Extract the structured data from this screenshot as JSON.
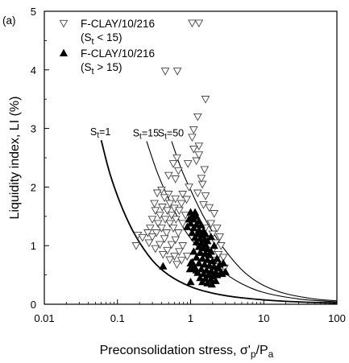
{
  "chart_data": {
    "type": "scatter",
    "panel_label": "(a)",
    "title": "",
    "xlabel": "Preconsolidation stress, σ'p/Pa",
    "xlabel_parts": {
      "main": "Preconsolidation stress, σ'",
      "sub1": "p",
      "mid": "/P",
      "sub2": "a"
    },
    "ylabel": "Liquidity index, LI (%)",
    "x_scale": "log",
    "xlim": [
      0.01,
      100
    ],
    "ylim": [
      0,
      5
    ],
    "x_ticks": [
      0.01,
      0.1,
      1,
      10,
      100
    ],
    "x_tick_labels": [
      "0.01",
      "0.1",
      "1",
      "10",
      "100"
    ],
    "y_ticks": [
      0,
      1,
      2,
      3,
      4,
      5
    ],
    "y_tick_labels": [
      "0",
      "1",
      "2",
      "3",
      "4",
      "5"
    ],
    "grid": false,
    "legend": {
      "placement": "top-left",
      "entries": [
        {
          "line1": "F-CLAY/10/216",
          "line2_prefix": "(S",
          "line2_sub": "t",
          "line2_suffix": " < 15)",
          "marker": "triangle-down-open"
        },
        {
          "line1": "F-CLAY/10/216",
          "line2_prefix": "(S",
          "line2_sub": "t",
          "line2_suffix": " > 15)",
          "marker": "triangle-up-filled"
        }
      ]
    },
    "series": [
      {
        "name": "F-CLAY/10/216 (St < 15)",
        "marker": "triangle-down-open",
        "points": [
          [
            1.05,
            4.8
          ],
          [
            1.3,
            4.8
          ],
          [
            0.45,
            3.98
          ],
          [
            0.66,
            3.98
          ],
          [
            1.6,
            3.5
          ],
          [
            1.25,
            3.2
          ],
          [
            1.1,
            2.98
          ],
          [
            1.05,
            2.85
          ],
          [
            1.3,
            2.7
          ],
          [
            0.65,
            2.5
          ],
          [
            0.58,
            2.4
          ],
          [
            0.92,
            2.4
          ],
          [
            0.68,
            2.28
          ],
          [
            0.5,
            2.2
          ],
          [
            0.62,
            2.14
          ],
          [
            0.4,
            1.95
          ],
          [
            0.95,
            2.0
          ],
          [
            0.35,
            1.9
          ],
          [
            0.5,
            1.88
          ],
          [
            0.78,
            1.88
          ],
          [
            0.44,
            1.82
          ],
          [
            0.62,
            1.8
          ],
          [
            0.88,
            1.79
          ],
          [
            0.32,
            1.72
          ],
          [
            0.52,
            1.72
          ],
          [
            0.75,
            1.72
          ],
          [
            0.41,
            1.66
          ],
          [
            0.6,
            1.64
          ],
          [
            0.33,
            1.6
          ],
          [
            0.48,
            1.6
          ],
          [
            0.7,
            1.6
          ],
          [
            0.38,
            1.52
          ],
          [
            0.55,
            1.52
          ],
          [
            0.85,
            1.52
          ],
          [
            0.3,
            1.45
          ],
          [
            0.45,
            1.45
          ],
          [
            0.63,
            1.45
          ],
          [
            0.36,
            1.38
          ],
          [
            0.52,
            1.38
          ],
          [
            0.78,
            1.38
          ],
          [
            0.28,
            1.3
          ],
          [
            0.4,
            1.3
          ],
          [
            0.58,
            1.3
          ],
          [
            0.26,
            1.22
          ],
          [
            0.34,
            1.22
          ],
          [
            0.47,
            1.22
          ],
          [
            0.68,
            1.22
          ],
          [
            0.19,
            1.18
          ],
          [
            0.22,
            1.14
          ],
          [
            0.3,
            1.15
          ],
          [
            0.44,
            1.12
          ],
          [
            0.62,
            1.1
          ],
          [
            0.27,
            1.05
          ],
          [
            0.38,
            1.02
          ],
          [
            0.55,
            1.02
          ],
          [
            0.78,
            1.0
          ],
          [
            0.33,
            0.95
          ],
          [
            0.48,
            0.92
          ],
          [
            0.7,
            0.9
          ],
          [
            0.42,
            0.85
          ],
          [
            0.6,
            0.82
          ],
          [
            0.9,
            0.82
          ],
          [
            0.52,
            0.76
          ],
          [
            0.75,
            0.75
          ],
          [
            0.65,
            0.68
          ],
          [
            0.18,
            1.0
          ],
          [
            1.5,
            1.7
          ],
          [
            1.8,
            1.65
          ],
          [
            2.1,
            1.55
          ],
          [
            1.9,
            1.38
          ],
          [
            2.3,
            1.3
          ],
          [
            1.6,
            1.3
          ],
          [
            2.0,
            1.2
          ],
          [
            2.5,
            1.15
          ],
          [
            1.75,
            1.12
          ],
          [
            2.2,
            1.05
          ],
          [
            2.6,
            1.0
          ],
          [
            1.5,
            0.98
          ],
          [
            2.0,
            0.92
          ],
          [
            2.4,
            0.85
          ],
          [
            1.7,
            0.82
          ],
          [
            2.8,
            0.8
          ],
          [
            2.2,
            0.75
          ],
          [
            1.9,
            0.7
          ],
          [
            2.5,
            0.68
          ],
          [
            2.9,
            0.62
          ],
          [
            2.1,
            0.6
          ],
          [
            2.6,
            0.55
          ],
          [
            1.45,
            2.05
          ],
          [
            1.25,
            1.9
          ],
          [
            1.6,
            1.85
          ],
          [
            1.4,
            2.15
          ],
          [
            1.55,
            2.3
          ],
          [
            1.2,
            2.45
          ],
          [
            1.3,
            2.55
          ],
          [
            1.1,
            2.65
          ]
        ]
      },
      {
        "name": "F-CLAY/10/216 (St > 15)",
        "marker": "triangle-up-filled",
        "points": [
          [
            0.42,
            0.65
          ],
          [
            1.0,
            0.38
          ],
          [
            1.0,
            1.57
          ],
          [
            1.15,
            1.57
          ],
          [
            1.05,
            1.5
          ],
          [
            1.2,
            1.5
          ],
          [
            0.95,
            1.45
          ],
          [
            1.1,
            1.45
          ],
          [
            1.3,
            1.42
          ],
          [
            1.0,
            1.38
          ],
          [
            1.2,
            1.36
          ],
          [
            1.4,
            1.35
          ],
          [
            0.9,
            1.32
          ],
          [
            1.1,
            1.3
          ],
          [
            1.3,
            1.27
          ],
          [
            1.5,
            1.25
          ],
          [
            1.05,
            1.22
          ],
          [
            1.25,
            1.2
          ],
          [
            1.45,
            1.18
          ],
          [
            1.15,
            1.14
          ],
          [
            1.35,
            1.12
          ],
          [
            1.55,
            1.1
          ],
          [
            1.2,
            1.06
          ],
          [
            1.4,
            1.04
          ],
          [
            1.6,
            1.02
          ],
          [
            1.3,
            0.98
          ],
          [
            1.5,
            0.96
          ],
          [
            1.7,
            0.94
          ],
          [
            1.1,
            0.9
          ],
          [
            1.35,
            0.88
          ],
          [
            1.6,
            0.86
          ],
          [
            1.8,
            0.84
          ],
          [
            1.2,
            0.8
          ],
          [
            1.45,
            0.78
          ],
          [
            1.7,
            0.76
          ],
          [
            2.0,
            0.74
          ],
          [
            1.05,
            0.72
          ],
          [
            1.3,
            0.7
          ],
          [
            1.55,
            0.68
          ],
          [
            1.8,
            0.66
          ],
          [
            2.1,
            0.64
          ],
          [
            2.4,
            0.62
          ],
          [
            1.15,
            0.62
          ],
          [
            1.4,
            0.6
          ],
          [
            1.65,
            0.58
          ],
          [
            1.9,
            0.56
          ],
          [
            2.2,
            0.55
          ],
          [
            2.6,
            0.54
          ],
          [
            1.25,
            0.54
          ],
          [
            1.5,
            0.52
          ],
          [
            1.75,
            0.5
          ],
          [
            2.0,
            0.48
          ],
          [
            2.3,
            0.5
          ],
          [
            2.7,
            0.52
          ],
          [
            3.0,
            0.55
          ],
          [
            1.35,
            0.45
          ],
          [
            1.6,
            0.44
          ],
          [
            1.9,
            0.42
          ],
          [
            2.2,
            0.4
          ],
          [
            1.45,
            0.38
          ],
          [
            1.7,
            0.36
          ],
          [
            1.95,
            0.34
          ],
          [
            1.1,
            0.65
          ],
          [
            1.2,
            0.58
          ],
          [
            0.98,
            0.6
          ],
          [
            1.0,
            0.7
          ],
          [
            2.5,
            0.68
          ],
          [
            2.8,
            0.7
          ],
          [
            2.3,
            0.78
          ],
          [
            1.9,
            0.9
          ],
          [
            2.1,
            1.0
          ],
          [
            1.7,
            1.08
          ],
          [
            1.9,
            1.15
          ],
          [
            1.6,
            1.2
          ]
        ]
      }
    ],
    "curves": [
      {
        "label_prefix": "S",
        "label_sub": "t",
        "label_suffix": "=1",
        "points": [
          [
            0.06,
            2.8
          ],
          [
            0.08,
            2.2
          ],
          [
            0.12,
            1.6
          ],
          [
            0.18,
            1.15
          ],
          [
            0.3,
            0.75
          ],
          [
            0.5,
            0.5
          ],
          [
            1.0,
            0.3
          ],
          [
            2.0,
            0.19
          ],
          [
            5.0,
            0.11
          ],
          [
            20,
            0.05
          ],
          [
            100,
            0.02
          ]
        ]
      },
      {
        "label_prefix": "S",
        "label_sub": "t",
        "label_suffix": "=15",
        "points": [
          [
            0.25,
            2.78
          ],
          [
            0.35,
            2.25
          ],
          [
            0.5,
            1.8
          ],
          [
            0.8,
            1.3
          ],
          [
            1.2,
            1.0
          ],
          [
            2.0,
            0.7
          ],
          [
            3.0,
            0.52
          ],
          [
            5.0,
            0.35
          ],
          [
            10,
            0.2
          ],
          [
            30,
            0.09
          ],
          [
            100,
            0.04
          ]
        ]
      },
      {
        "label_prefix": "S",
        "label_sub": "t",
        "label_suffix": "=50",
        "points": [
          [
            0.55,
            2.78
          ],
          [
            0.75,
            2.3
          ],
          [
            1.0,
            1.95
          ],
          [
            1.5,
            1.5
          ],
          [
            2.5,
            1.05
          ],
          [
            4.0,
            0.72
          ],
          [
            6.0,
            0.5
          ],
          [
            10,
            0.32
          ],
          [
            20,
            0.18
          ],
          [
            50,
            0.09
          ],
          [
            100,
            0.06
          ]
        ]
      }
    ]
  }
}
